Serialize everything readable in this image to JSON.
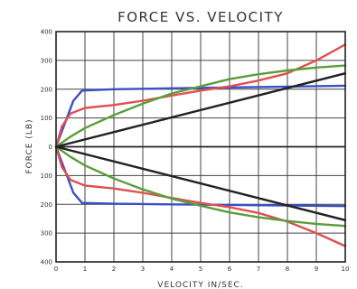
{
  "chart_data": {
    "type": "line",
    "title": "FORCE VS. VELOCITY",
    "xlabel": "VELOCITY   IN/SEC.",
    "ylabel": "FORCE  (LB)",
    "xlim": [
      0,
      10
    ],
    "ylim": [
      -400,
      400
    ],
    "x_ticks": [
      "0",
      "1",
      "2",
      "3",
      "4",
      "5",
      "6",
      "7",
      "8",
      "9",
      "10"
    ],
    "y_ticks": [
      "400",
      "300",
      "200",
      "100",
      "0",
      "100",
      "200",
      "300",
      "400"
    ],
    "y_tick_values": [
      400,
      300,
      200,
      100,
      0,
      -100,
      -200,
      -300,
      -400
    ],
    "grid": true,
    "series": [
      {
        "color": "#3a4fc4",
        "x": [
          0,
          0.3,
          0.6,
          0.9,
          2,
          4,
          6,
          8,
          10
        ],
        "y": [
          0,
          80,
          160,
          195,
          200,
          203,
          206,
          209,
          212
        ]
      },
      {
        "color": "#3a4fc4",
        "x": [
          0,
          0.3,
          0.6,
          0.9,
          2,
          4,
          6,
          8,
          10
        ],
        "y": [
          0,
          -80,
          -160,
          -195,
          -198,
          -200,
          -202,
          -204,
          -206
        ]
      },
      {
        "color": "#e05050",
        "x": [
          0,
          0.2,
          0.5,
          1,
          2,
          3,
          4,
          5,
          6,
          7,
          8,
          9,
          10
        ],
        "y": [
          0,
          70,
          115,
          135,
          145,
          160,
          178,
          195,
          210,
          230,
          255,
          300,
          355
        ]
      },
      {
        "color": "#e05050",
        "x": [
          0,
          0.2,
          0.5,
          1,
          2,
          3,
          4,
          5,
          6,
          7,
          8,
          9,
          10
        ],
        "y": [
          0,
          -70,
          -115,
          -135,
          -145,
          -160,
          -178,
          -195,
          -210,
          -230,
          -260,
          -300,
          -345
        ]
      },
      {
        "color": "#5a9e3a",
        "x": [
          0,
          0.5,
          1,
          2,
          3,
          4,
          5,
          6,
          7,
          8,
          9,
          10
        ],
        "y": [
          0,
          35,
          65,
          110,
          150,
          185,
          210,
          235,
          252,
          265,
          275,
          282
        ]
      },
      {
        "color": "#5a9e3a",
        "x": [
          0,
          0.5,
          1,
          2,
          3,
          4,
          5,
          6,
          7,
          8,
          9,
          10
        ],
        "y": [
          0,
          -35,
          -65,
          -110,
          -148,
          -180,
          -205,
          -228,
          -245,
          -258,
          -268,
          -275
        ]
      },
      {
        "color": "#222222",
        "x": [
          0,
          10
        ],
        "y": [
          0,
          255
        ]
      },
      {
        "color": "#222222",
        "x": [
          0,
          10
        ],
        "y": [
          0,
          -255
        ]
      }
    ]
  }
}
